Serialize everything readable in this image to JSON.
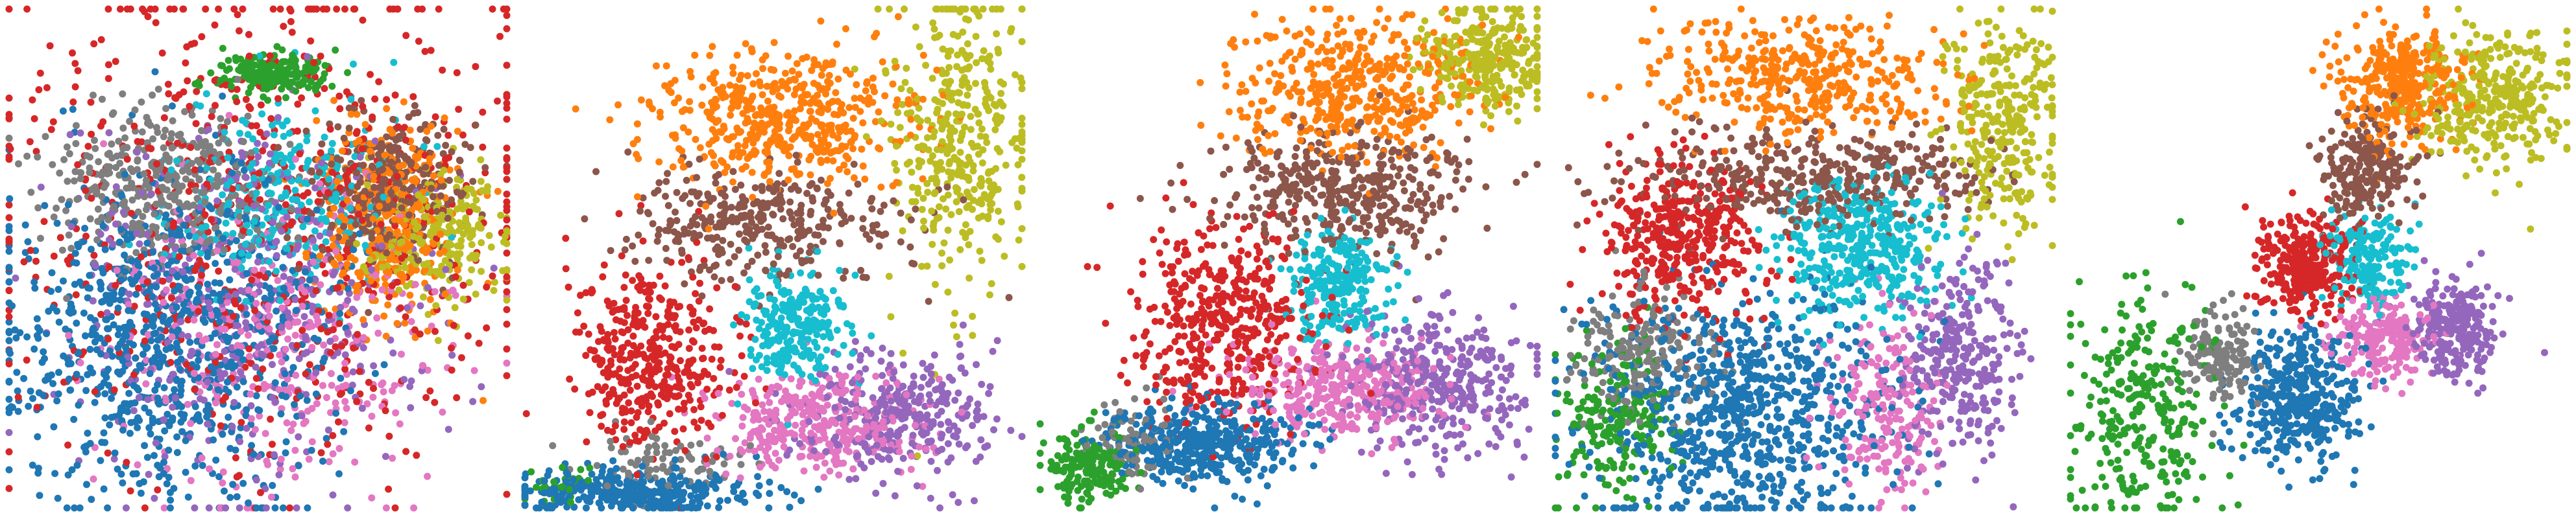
{
  "figure": {
    "background": "#ffffff",
    "axes_visible": false
  },
  "palette": {
    "blue": "#1f77b4",
    "orange": "#ff7f0e",
    "green": "#2ca02c",
    "red": "#d62728",
    "purple": "#9467bd",
    "brown": "#8c564b",
    "pink": "#e377c2",
    "gray": "#7f7f7f",
    "olive": "#bcbd22",
    "cyan": "#17becf"
  },
  "chart_data": [
    {
      "type": "scatter",
      "title": "",
      "xlabel": "",
      "ylabel": "",
      "grid": false,
      "legend": "none",
      "xlim": [
        0,
        1
      ],
      "ylim": [
        0,
        1
      ],
      "clusters": [
        {
          "color": "blue",
          "x": 0.32,
          "y": 0.34,
          "sx": 0.16,
          "sy": 0.16,
          "n": 900
        },
        {
          "color": "red",
          "x": 0.52,
          "y": 0.58,
          "sx": 0.28,
          "sy": 0.26,
          "n": 700
        },
        {
          "color": "purple",
          "x": 0.5,
          "y": 0.42,
          "sx": 0.18,
          "sy": 0.18,
          "n": 450
        },
        {
          "color": "pink",
          "x": 0.54,
          "y": 0.32,
          "sx": 0.17,
          "sy": 0.15,
          "n": 350
        },
        {
          "color": "gray",
          "x": 0.3,
          "y": 0.64,
          "sx": 0.12,
          "sy": 0.08,
          "n": 400
        },
        {
          "color": "cyan",
          "x": 0.56,
          "y": 0.62,
          "sx": 0.12,
          "sy": 0.1,
          "n": 300
        },
        {
          "color": "brown",
          "x": 0.76,
          "y": 0.64,
          "sx": 0.08,
          "sy": 0.07,
          "n": 350
        },
        {
          "color": "orange",
          "x": 0.76,
          "y": 0.58,
          "sx": 0.07,
          "sy": 0.1,
          "n": 350
        },
        {
          "color": "olive",
          "x": 0.86,
          "y": 0.54,
          "sx": 0.07,
          "sy": 0.07,
          "n": 250
        },
        {
          "color": "green",
          "x": 0.53,
          "y": 0.87,
          "sx": 0.06,
          "sy": 0.02,
          "n": 200
        }
      ]
    },
    {
      "type": "scatter",
      "title": "",
      "xlabel": "",
      "ylabel": "",
      "grid": false,
      "legend": "none",
      "xlim": [
        0,
        1
      ],
      "ylim": [
        0,
        1
      ],
      "clusters": [
        {
          "color": "orange",
          "x": 0.52,
          "y": 0.78,
          "sx": 0.13,
          "sy": 0.07,
          "n": 500
        },
        {
          "color": "olive",
          "x": 0.88,
          "y": 0.74,
          "sx": 0.07,
          "sy": 0.16,
          "n": 400
        },
        {
          "color": "brown",
          "x": 0.48,
          "y": 0.57,
          "sx": 0.14,
          "sy": 0.06,
          "n": 350
        },
        {
          "color": "red",
          "x": 0.25,
          "y": 0.3,
          "sx": 0.08,
          "sy": 0.1,
          "n": 400
        },
        {
          "color": "cyan",
          "x": 0.54,
          "y": 0.37,
          "sx": 0.05,
          "sy": 0.06,
          "n": 250
        },
        {
          "color": "pink",
          "x": 0.6,
          "y": 0.17,
          "sx": 0.1,
          "sy": 0.05,
          "n": 350
        },
        {
          "color": "purple",
          "x": 0.77,
          "y": 0.18,
          "sx": 0.09,
          "sy": 0.07,
          "n": 300
        },
        {
          "color": "blue",
          "x": 0.22,
          "y": 0.03,
          "sx": 0.12,
          "sy": 0.025,
          "n": 350
        },
        {
          "color": "gray",
          "x": 0.28,
          "y": 0.09,
          "sx": 0.08,
          "sy": 0.03,
          "n": 80
        },
        {
          "color": "green",
          "x": 0.06,
          "y": 0.05,
          "sx": 0.03,
          "sy": 0.02,
          "n": 30
        }
      ]
    },
    {
      "type": "scatter",
      "title": "",
      "xlabel": "",
      "ylabel": "",
      "grid": false,
      "legend": "none",
      "xlim": [
        0,
        1
      ],
      "ylim": [
        0,
        1
      ],
      "clusters": [
        {
          "color": "orange",
          "x": 0.64,
          "y": 0.85,
          "sx": 0.12,
          "sy": 0.07,
          "n": 450
        },
        {
          "color": "olive",
          "x": 0.9,
          "y": 0.9,
          "sx": 0.07,
          "sy": 0.06,
          "n": 300
        },
        {
          "color": "brown",
          "x": 0.62,
          "y": 0.64,
          "sx": 0.13,
          "sy": 0.06,
          "n": 400
        },
        {
          "color": "red",
          "x": 0.37,
          "y": 0.38,
          "sx": 0.09,
          "sy": 0.1,
          "n": 450
        },
        {
          "color": "cyan",
          "x": 0.6,
          "y": 0.44,
          "sx": 0.05,
          "sy": 0.06,
          "n": 250
        },
        {
          "color": "pink",
          "x": 0.6,
          "y": 0.24,
          "sx": 0.1,
          "sy": 0.05,
          "n": 350
        },
        {
          "color": "purple",
          "x": 0.8,
          "y": 0.25,
          "sx": 0.09,
          "sy": 0.07,
          "n": 350
        },
        {
          "color": "blue",
          "x": 0.33,
          "y": 0.13,
          "sx": 0.1,
          "sy": 0.04,
          "n": 400
        },
        {
          "color": "gray",
          "x": 0.18,
          "y": 0.14,
          "sx": 0.04,
          "sy": 0.04,
          "n": 80
        },
        {
          "color": "green",
          "x": 0.1,
          "y": 0.08,
          "sx": 0.04,
          "sy": 0.035,
          "n": 180
        }
      ]
    },
    {
      "type": "scatter",
      "title": "",
      "xlabel": "",
      "ylabel": "",
      "grid": false,
      "legend": "none",
      "xlim": [
        0,
        1
      ],
      "ylim": [
        0,
        1
      ],
      "clusters": [
        {
          "color": "orange",
          "x": 0.49,
          "y": 0.86,
          "sx": 0.15,
          "sy": 0.06,
          "n": 400
        },
        {
          "color": "olive",
          "x": 0.9,
          "y": 0.76,
          "sx": 0.06,
          "sy": 0.12,
          "n": 300
        },
        {
          "color": "brown",
          "x": 0.52,
          "y": 0.66,
          "sx": 0.18,
          "sy": 0.05,
          "n": 400
        },
        {
          "color": "red",
          "x": 0.25,
          "y": 0.54,
          "sx": 0.08,
          "sy": 0.08,
          "n": 400
        },
        {
          "color": "cyan",
          "x": 0.62,
          "y": 0.52,
          "sx": 0.08,
          "sy": 0.07,
          "n": 400
        },
        {
          "color": "purple",
          "x": 0.82,
          "y": 0.3,
          "sx": 0.06,
          "sy": 0.1,
          "n": 300
        },
        {
          "color": "pink",
          "x": 0.67,
          "y": 0.2,
          "sx": 0.06,
          "sy": 0.08,
          "n": 200
        },
        {
          "color": "blue",
          "x": 0.37,
          "y": 0.2,
          "sx": 0.15,
          "sy": 0.12,
          "n": 800
        },
        {
          "color": "gray",
          "x": 0.18,
          "y": 0.3,
          "sx": 0.08,
          "sy": 0.07,
          "n": 200
        },
        {
          "color": "green",
          "x": 0.12,
          "y": 0.18,
          "sx": 0.06,
          "sy": 0.08,
          "n": 200
        }
      ]
    },
    {
      "type": "scatter",
      "title": "",
      "xlabel": "",
      "ylabel": "",
      "grid": false,
      "legend": "none",
      "xlim": [
        0,
        1
      ],
      "ylim": [
        0,
        1
      ],
      "clusters": [
        {
          "color": "orange",
          "x": 0.66,
          "y": 0.84,
          "sx": 0.06,
          "sy": 0.06,
          "n": 350
        },
        {
          "color": "olive",
          "x": 0.85,
          "y": 0.82,
          "sx": 0.07,
          "sy": 0.07,
          "n": 350
        },
        {
          "color": "brown",
          "x": 0.6,
          "y": 0.68,
          "sx": 0.05,
          "sy": 0.05,
          "n": 250
        },
        {
          "color": "red",
          "x": 0.47,
          "y": 0.49,
          "sx": 0.05,
          "sy": 0.05,
          "n": 300
        },
        {
          "color": "cyan",
          "x": 0.6,
          "y": 0.5,
          "sx": 0.04,
          "sy": 0.05,
          "n": 200
        },
        {
          "color": "pink",
          "x": 0.62,
          "y": 0.34,
          "sx": 0.05,
          "sy": 0.04,
          "n": 200
        },
        {
          "color": "purple",
          "x": 0.77,
          "y": 0.36,
          "sx": 0.04,
          "sy": 0.05,
          "n": 250
        },
        {
          "color": "blue",
          "x": 0.46,
          "y": 0.22,
          "sx": 0.06,
          "sy": 0.07,
          "n": 400
        },
        {
          "color": "gray",
          "x": 0.3,
          "y": 0.3,
          "sx": 0.04,
          "sy": 0.05,
          "n": 150
        },
        {
          "color": "green",
          "x": 0.15,
          "y": 0.2,
          "sx": 0.08,
          "sy": 0.11,
          "n": 300
        }
      ]
    }
  ]
}
